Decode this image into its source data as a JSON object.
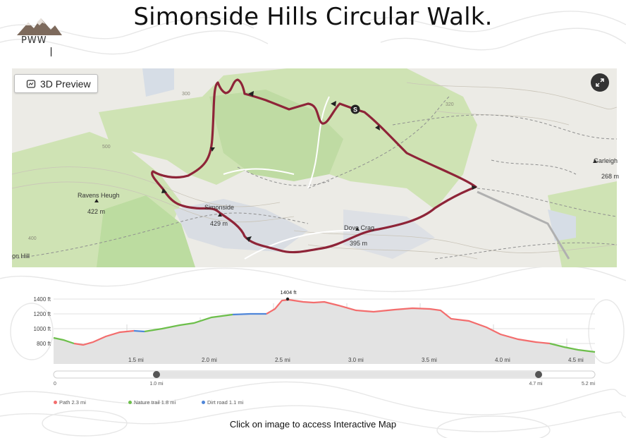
{
  "page": {
    "title": "Simonside Hills Circular Walk.",
    "caption": "Click on image to access Interactive Map",
    "logo_text": "PWW"
  },
  "map": {
    "preview_button": "3D Preview",
    "expand_icon": "expand-icon",
    "labels": {
      "ravens_heugh": "Ravens Heugh",
      "ravens_heugh_height": "422 m",
      "simonside": "Simonside",
      "simonside_height": "429 m",
      "dove_crag": "Dove Crag",
      "dove_crag_height": "395 m",
      "garleigh": "Garleigh",
      "garleigh_height": "268 m",
      "on_hill": "on Hill",
      "contour_300": "300",
      "contour_400": "400",
      "contour_500": "500",
      "contour_320": "320"
    },
    "start_marker": "S",
    "route_color": "#8e2438"
  },
  "elevation": {
    "peak_label": "1404 ft",
    "y_ticks": [
      "1400 ft",
      "1200 ft",
      "1000 ft",
      "800 ft"
    ],
    "x_ticks": [
      "1.5 mi",
      "2.0 mi",
      "2.5 mi",
      "3.0 mi",
      "3.5 mi",
      "4.0 mi",
      "4.5 mi"
    ],
    "slider": {
      "start": "0",
      "left_handle": "1.0 mi",
      "right_handle": "4.7 mi",
      "end": "5.2 mi"
    },
    "colors": {
      "path": "#f36d6d",
      "trail": "#6dbf4b",
      "road": "#4f86d9"
    }
  },
  "legend": [
    {
      "label": "Path 2.3 mi",
      "color": "#f36d6d"
    },
    {
      "label": "Nature trail 1.8 mi",
      "color": "#6dbf4b"
    },
    {
      "label": "Dirt road 1.1 mi",
      "color": "#4f86d9"
    }
  ]
}
